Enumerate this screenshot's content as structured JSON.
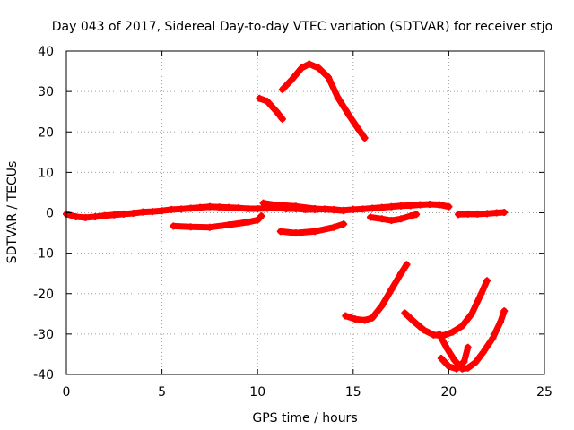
{
  "chart_data": {
    "type": "line",
    "title": "Day 043 of 2017, Sidereal Day-to-day VTEC variation (SDTVAR) for receiver stjo",
    "xlabel": "GPS time / hours",
    "ylabel": "SDTVAR / TECUs",
    "xlim": [
      0,
      25
    ],
    "ylim": [
      -40,
      40
    ],
    "xticks": [
      "0",
      "5",
      "10",
      "15",
      "20",
      "25"
    ],
    "yticks": [
      "40",
      "30",
      "20",
      "10",
      "0",
      "-10",
      "-20",
      "-30",
      "-40"
    ],
    "grid": true,
    "colors": {
      "series": "#ff0000",
      "grid": "#a0a0a0",
      "axis": "#000000"
    },
    "series": [
      {
        "points": [
          [
            0.0,
            -0.3
          ],
          [
            0.5,
            -1.0
          ],
          [
            1.0,
            -1.2
          ],
          [
            1.5,
            -1.0
          ],
          [
            2.0,
            -0.7
          ],
          [
            2.5,
            -0.5
          ],
          [
            3.0,
            -0.3
          ],
          [
            3.5,
            -0.1
          ],
          [
            4.0,
            0.2
          ],
          [
            4.5,
            0.3
          ],
          [
            5.0,
            0.5
          ],
          [
            5.5,
            0.8
          ],
          [
            6.0,
            0.9
          ],
          [
            6.5,
            1.1
          ],
          [
            7.0,
            1.3
          ],
          [
            7.5,
            1.5
          ],
          [
            8.0,
            1.4
          ],
          [
            8.5,
            1.3
          ],
          [
            9.0,
            1.2
          ],
          [
            9.5,
            1.0
          ],
          [
            10.0,
            1.0
          ],
          [
            10.5,
            1.1
          ],
          [
            11.0,
            1.2
          ],
          [
            11.5,
            1.0
          ],
          [
            12.0,
            1.0
          ],
          [
            12.5,
            0.8
          ],
          [
            13.0,
            0.8
          ],
          [
            13.5,
            0.9
          ],
          [
            14.0,
            0.8
          ],
          [
            14.5,
            0.6
          ],
          [
            15.0,
            0.8
          ],
          [
            15.5,
            0.9
          ],
          [
            16.0,
            1.1
          ],
          [
            16.5,
            1.3
          ],
          [
            17.0,
            1.5
          ],
          [
            17.5,
            1.7
          ],
          [
            18.0,
            1.8
          ],
          [
            18.5,
            2.0
          ],
          [
            19.0,
            2.1
          ],
          [
            19.5,
            2.0
          ],
          [
            20.0,
            1.5
          ]
        ]
      },
      {
        "points": [
          [
            20.5,
            -0.4
          ],
          [
            21.0,
            -0.3
          ],
          [
            21.5,
            -0.3
          ],
          [
            22.0,
            -0.2
          ],
          [
            22.5,
            0.0
          ],
          [
            22.9,
            0.1
          ]
        ]
      },
      {
        "points": [
          [
            5.6,
            -3.3
          ],
          [
            6.5,
            -3.5
          ],
          [
            7.5,
            -3.6
          ],
          [
            8.5,
            -3.0
          ],
          [
            9.5,
            -2.3
          ],
          [
            10.0,
            -1.8
          ],
          [
            10.2,
            -0.8
          ]
        ]
      },
      {
        "points": [
          [
            10.3,
            2.4
          ],
          [
            11.0,
            1.9
          ],
          [
            12.0,
            1.6
          ],
          [
            13.0,
            1.0
          ],
          [
            14.0,
            0.7
          ],
          [
            14.5,
            0.5
          ]
        ]
      },
      {
        "points": [
          [
            11.2,
            -4.6
          ],
          [
            12.0,
            -5.0
          ],
          [
            13.0,
            -4.6
          ],
          [
            14.0,
            -3.6
          ],
          [
            14.5,
            -2.8
          ]
        ]
      },
      {
        "points": [
          [
            15.9,
            -1.1
          ],
          [
            16.5,
            -1.5
          ],
          [
            17.0,
            -1.9
          ],
          [
            17.5,
            -1.5
          ],
          [
            18.0,
            -0.8
          ],
          [
            18.3,
            -0.4
          ]
        ]
      },
      {
        "points": [
          [
            10.1,
            28.3
          ],
          [
            10.5,
            27.6
          ],
          [
            11.0,
            25.0
          ],
          [
            11.3,
            23.2
          ]
        ]
      },
      {
        "points": [
          [
            11.3,
            30.5
          ],
          [
            11.8,
            33.0
          ],
          [
            12.3,
            35.8
          ],
          [
            12.7,
            36.8
          ],
          [
            13.2,
            35.8
          ],
          [
            13.7,
            33.5
          ],
          [
            14.2,
            28.5
          ],
          [
            14.8,
            24.0
          ],
          [
            15.3,
            20.5
          ],
          [
            15.6,
            18.5
          ]
        ]
      },
      {
        "points": [
          [
            14.6,
            -25.5
          ],
          [
            15.1,
            -26.3
          ],
          [
            15.6,
            -26.6
          ],
          [
            16.0,
            -26.0
          ],
          [
            16.5,
            -23.0
          ],
          [
            17.0,
            -19.0
          ],
          [
            17.5,
            -15.0
          ],
          [
            17.8,
            -12.8
          ]
        ]
      },
      {
        "points": [
          [
            17.7,
            -24.8
          ],
          [
            18.2,
            -27.0
          ],
          [
            18.7,
            -29.0
          ],
          [
            19.2,
            -30.2
          ],
          [
            19.7,
            -30.4
          ],
          [
            20.2,
            -29.5
          ],
          [
            20.7,
            -28.0
          ],
          [
            21.2,
            -25.0
          ],
          [
            21.7,
            -20.0
          ],
          [
            22.0,
            -16.8
          ]
        ]
      },
      {
        "points": [
          [
            19.5,
            -30.0
          ],
          [
            19.9,
            -33.5
          ],
          [
            20.3,
            -36.5
          ],
          [
            20.7,
            -38.6
          ],
          [
            21.0,
            -38.4
          ],
          [
            21.4,
            -37.0
          ],
          [
            21.8,
            -34.5
          ],
          [
            22.3,
            -31.0
          ],
          [
            22.7,
            -27.0
          ],
          [
            22.9,
            -24.3
          ]
        ]
      },
      {
        "points": [
          [
            19.6,
            -36.0
          ],
          [
            20.0,
            -38.0
          ],
          [
            20.4,
            -38.6
          ],
          [
            20.8,
            -36.8
          ],
          [
            21.0,
            -33.3
          ]
        ]
      }
    ]
  }
}
